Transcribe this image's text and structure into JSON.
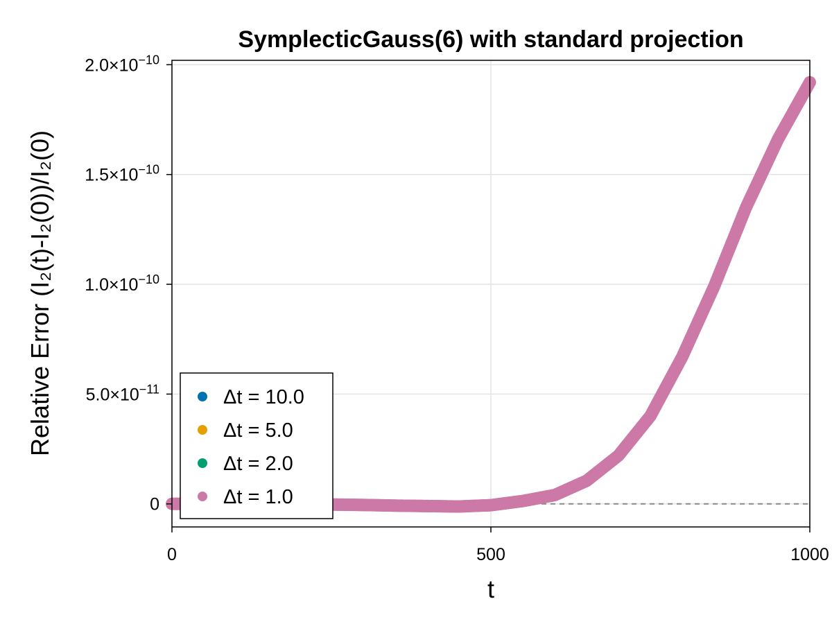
{
  "chart_data": {
    "type": "scatter",
    "title": "SymplecticGauss(6) with standard projection",
    "xlabel": "t",
    "ylabel": "Relative Error (I₂(t)-I₂(0))/I₂(0)",
    "xlim": [
      0,
      1000
    ],
    "ylim": [
      -1.05e-11,
      2.02e-10
    ],
    "xticks": [
      {
        "value": 0,
        "label": "0"
      },
      {
        "value": 500,
        "label": "500"
      },
      {
        "value": 1000,
        "label": "1000"
      }
    ],
    "yticks": [
      {
        "value": 0,
        "label": "0",
        "exp": ""
      },
      {
        "value": 5e-11,
        "label": "5.0×10",
        "exp": "−11"
      },
      {
        "value": 1e-10,
        "label": "1.0×10",
        "exp": "−10"
      },
      {
        "value": 1.5e-10,
        "label": "1.5×10",
        "exp": "−10"
      },
      {
        "value": 2e-10,
        "label": "2.0×10",
        "exp": "−10"
      }
    ],
    "grid": true,
    "legend_position": "bottom-left",
    "reference_line": {
      "y": 0,
      "style": "dashed",
      "color": "#888888"
    },
    "series": [
      {
        "name": "Δt = 10.0",
        "color": "#0072b2",
        "visible_points": false
      },
      {
        "name": "Δt = 5.0",
        "color": "#e69f00",
        "visible_points": false
      },
      {
        "name": "Δt = 2.0",
        "color": "#009e73",
        "visible_points": false
      },
      {
        "name": "Δt = 1.0",
        "color": "#cc79a7",
        "x": [
          0,
          50,
          100,
          150,
          200,
          250,
          300,
          350,
          400,
          450,
          500,
          550,
          600,
          650,
          700,
          750,
          800,
          850,
          900,
          950,
          1000
        ],
        "y": [
          0,
          0,
          0,
          0,
          -1e-13,
          -3e-13,
          -5e-13,
          -8e-13,
          -1e-12,
          -1.2e-12,
          -6e-13,
          1.3e-12,
          4e-12,
          1.05e-11,
          2.2e-11,
          4e-11,
          6.7e-11,
          9.9e-11,
          1.35e-10,
          1.66e-10,
          1.92e-10
        ]
      }
    ]
  }
}
